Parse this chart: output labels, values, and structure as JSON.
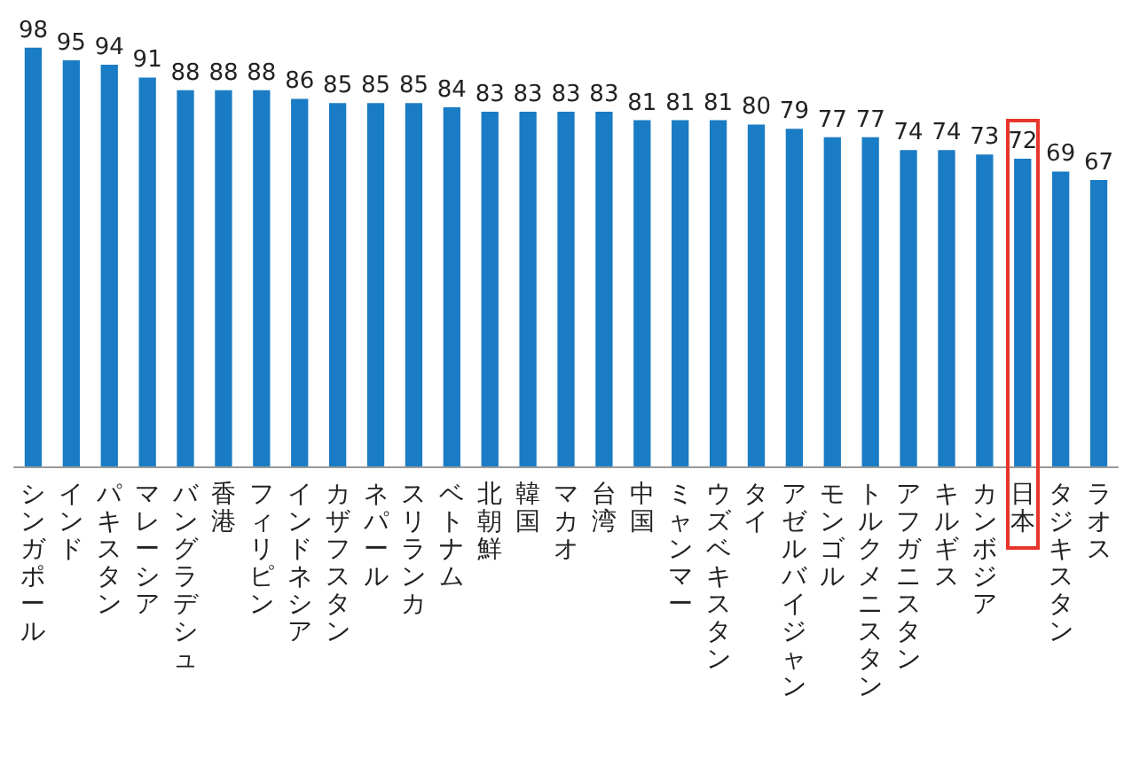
{
  "chart_data": {
    "type": "bar",
    "categories": [
      "シンガポール",
      "インド",
      "パキスタン",
      "マレーシア",
      "バングラデシュ",
      "香港",
      "フィリピン",
      "インドネシア",
      "カザフスタン",
      "ネパール",
      "スリランカ",
      "ベトナム",
      "北朝鮮",
      "韓国",
      "マカオ",
      "台湾",
      "中国",
      "ミャンマー",
      "ウズベキスタン",
      "タイ",
      "アゼルバイジャン",
      "モンゴル",
      "トルクメニスタン",
      "アフガニスタン",
      "キルギス",
      "カンボジア",
      "日本",
      "タジキスタン",
      "ラオス"
    ],
    "values": [
      98,
      95,
      94,
      91,
      88,
      88,
      88,
      86,
      85,
      85,
      85,
      84,
      83,
      83,
      83,
      83,
      81,
      81,
      81,
      80,
      79,
      77,
      77,
      74,
      74,
      73,
      72,
      69,
      67
    ],
    "color": "#1a7cc4",
    "data_labels": true,
    "grid": false
  }
}
